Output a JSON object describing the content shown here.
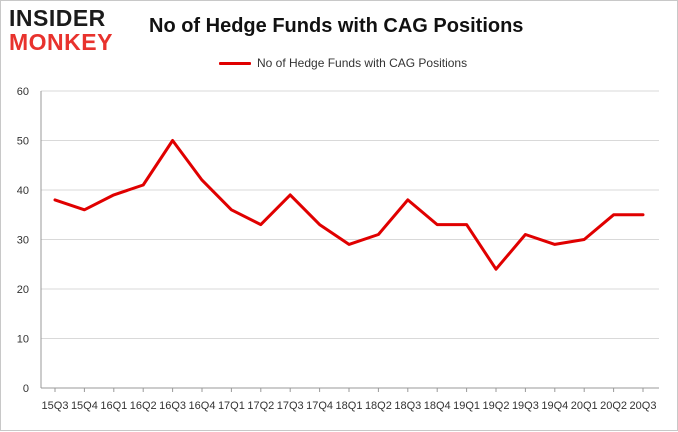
{
  "logo": {
    "line1": "INSIDER",
    "line2": "MONKEY"
  },
  "chart_data": {
    "type": "line",
    "title": "No of Hedge Funds with CAG Positions",
    "xlabel": "",
    "ylabel": "",
    "categories": [
      "15Q3",
      "15Q4",
      "16Q1",
      "16Q2",
      "16Q3",
      "16Q4",
      "17Q1",
      "17Q2",
      "17Q3",
      "17Q4",
      "18Q1",
      "18Q2",
      "18Q3",
      "18Q4",
      "19Q1",
      "19Q2",
      "19Q3",
      "19Q4",
      "20Q1",
      "20Q2",
      "20Q3"
    ],
    "series": [
      {
        "name": "No of Hedge Funds with CAG Positions",
        "values": [
          38,
          36,
          39,
          41,
          50,
          42,
          36,
          33,
          39,
          33,
          29,
          31,
          38,
          33,
          33,
          24,
          31,
          29,
          30,
          35,
          35
        ]
      }
    ],
    "ylim": [
      0,
      60
    ],
    "yticks": [
      0,
      10,
      20,
      30,
      40,
      50,
      60
    ],
    "grid": true,
    "legend_position": "top-center",
    "colors": {
      "line": "#e00000",
      "grid": "#d9d9d9",
      "axis": "#999999"
    }
  }
}
